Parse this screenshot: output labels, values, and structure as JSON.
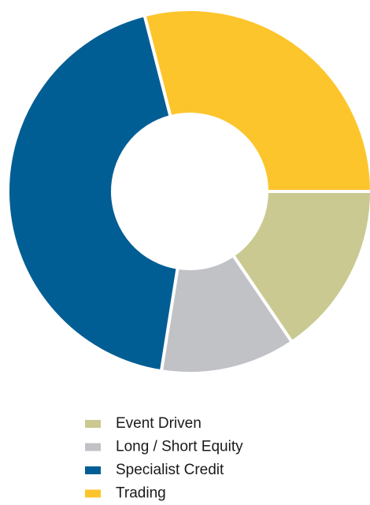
{
  "chart_data": {
    "type": "donut",
    "categories": [
      "Event Driven",
      "Long / Short Equity",
      "Specialist Credit",
      "Trading"
    ],
    "values": [
      15.5,
      12,
      43.5,
      29
    ],
    "colors": [
      "#c9c991",
      "#c0c2c6",
      "#005e94",
      "#fdc52c"
    ],
    "legend": "bottom"
  }
}
